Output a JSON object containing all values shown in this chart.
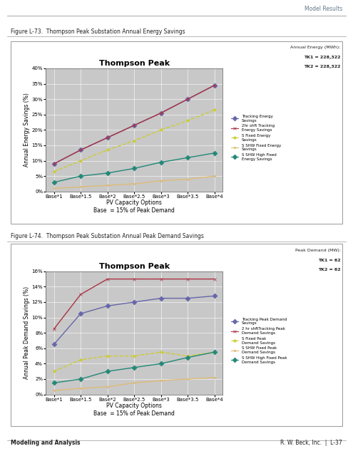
{
  "page_title_top": "Model Results",
  "footer_left": "Modeling and Analysis",
  "footer_right": "R. W. Beck, Inc.  |  L-37",
  "fig1_label": "Figure L-73.  Thompson Peak Substation Annual Energy Savings",
  "fig1_title": "Thompson Peak",
  "fig1_xlabel": "PV Capacity Options",
  "fig1_xlabel2": "Base  = 15% of Peak Demand",
  "fig1_ylabel": "Annual Energy Savings (%)",
  "fig1_annot_title": "Annual Energy (MWh):",
  "fig1_annot_line1": "TK1 = 228,322",
  "fig1_annot_line2": "TK2 = 228,322",
  "fig1_ylim": [
    0,
    40
  ],
  "fig1_yticks": [
    0,
    5,
    10,
    15,
    20,
    25,
    30,
    35,
    40
  ],
  "fig1_yticklabels": [
    "0%",
    "5%",
    "10%",
    "15%",
    "20%",
    "25%",
    "30%",
    "35%",
    "40%"
  ],
  "fig1_xticks": [
    "Base*1",
    "Base*1.5",
    "Base*2",
    "Base*2.5",
    "Base*3",
    "Base*3.5",
    "Base*4"
  ],
  "fig1_series": [
    {
      "label": "Tracking Energy\nSavings",
      "color": "#6666aa",
      "marker": "D",
      "marker_color": "#6666aa",
      "linestyle": "-",
      "values": [
        9.0,
        13.5,
        17.5,
        21.5,
        25.5,
        30.0,
        34.5
      ]
    },
    {
      "label": "2hr shft Tracking\nEnergy Savings",
      "color": "#aa3344",
      "marker": "x",
      "marker_color": "#aa3344",
      "linestyle": "-",
      "values": [
        9.0,
        13.5,
        17.5,
        21.5,
        25.5,
        30.0,
        34.5
      ]
    },
    {
      "label": "S Fixed Energy\nSavings",
      "color": "#cccc33",
      "marker": "*",
      "marker_color": "#cccc33",
      "linestyle": "--",
      "values": [
        6.5,
        10.0,
        13.5,
        16.5,
        20.0,
        23.0,
        26.5
      ]
    },
    {
      "label": "S SHW Fixed Energy\nSavings",
      "color": "#ddbb77",
      "marker": ".",
      "marker_color": "#ddbb77",
      "linestyle": "-",
      "values": [
        1.0,
        1.5,
        2.0,
        2.5,
        3.5,
        4.0,
        5.0
      ]
    },
    {
      "label": "S SHW High Fixed\nEnergy Savings",
      "color": "#228877",
      "marker": "D",
      "marker_color": "#228877",
      "linestyle": "-",
      "values": [
        3.0,
        5.0,
        6.0,
        7.5,
        9.5,
        11.0,
        12.5
      ]
    }
  ],
  "fig2_label": "Figure L-74.  Thompson Peak Substation Annual Peak Demand Savings",
  "fig2_title": "Thompson Peak",
  "fig2_xlabel": "PV Capacity Options",
  "fig2_xlabel2": "Base  = 15% of Peak Demand",
  "fig2_ylabel": "Annual Peak Demand Savings (%)",
  "fig2_annot_title": "Peak Demand (MW):",
  "fig2_annot_line1": "TK1 = 62",
  "fig2_annot_line2": "TK2 = 62",
  "fig2_ylim": [
    0,
    16
  ],
  "fig2_yticks": [
    0,
    2,
    4,
    6,
    8,
    10,
    12,
    14,
    16
  ],
  "fig2_yticklabels": [
    "0%",
    "2%",
    "4%",
    "6%",
    "8%",
    "10%",
    "12%",
    "14%",
    "16%"
  ],
  "fig2_xticks": [
    "Base*1",
    "Base*1.5",
    "Base*2",
    "Base*2.5",
    "Base*3",
    "Base*3.5",
    "Base*4"
  ],
  "fig2_series": [
    {
      "label": "Tracking Peak Demand\nSavings",
      "color": "#6666aa",
      "marker": "D",
      "marker_color": "#6666aa",
      "linestyle": "-",
      "values": [
        6.5,
        10.5,
        11.5,
        12.0,
        12.5,
        12.5,
        12.8
      ]
    },
    {
      "label": "2 hr shftTracking Peak\nDemand Savings",
      "color": "#aa3344",
      "marker": "x",
      "marker_color": "#aa3344",
      "linestyle": "-",
      "values": [
        8.5,
        13.0,
        15.0,
        15.0,
        15.0,
        15.0,
        15.0
      ]
    },
    {
      "label": "S Fixed Peak\nDemand Savings",
      "color": "#cccc33",
      "marker": "*",
      "marker_color": "#cccc33",
      "linestyle": "--",
      "values": [
        3.0,
        4.5,
        5.0,
        5.0,
        5.5,
        5.0,
        5.5
      ]
    },
    {
      "label": "S SHW Fixed Peak\nDemand Savings",
      "color": "#ddbb77",
      "marker": ".",
      "marker_color": "#ddbb77",
      "linestyle": "-",
      "values": [
        0.5,
        0.8,
        1.0,
        1.5,
        1.8,
        2.0,
        2.2
      ]
    },
    {
      "label": "S SHW High Fixed Peak\nDemand Savings",
      "color": "#228877",
      "marker": "D",
      "marker_color": "#228877",
      "linestyle": "-",
      "values": [
        1.5,
        2.0,
        3.0,
        3.5,
        4.0,
        4.8,
        5.5
      ]
    }
  ],
  "bg_color": "#c8c8c8",
  "outer_bg": "#ffffff",
  "box_bg": "#ffffff"
}
